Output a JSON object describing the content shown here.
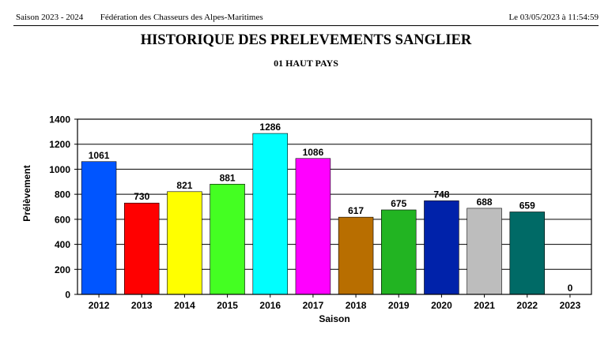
{
  "header": {
    "season": "Saison 2023 - 2024",
    "federation": "Fédération des Chasseurs des Alpes-Maritimes",
    "datetime": "Le  03/05/2023  à  11:54:59"
  },
  "chart_data": {
    "type": "bar",
    "title": "HISTORIQUE DES PRELEVEMENTS SANGLIER",
    "subtitle": "01 HAUT PAYS",
    "xlabel": "Saison",
    "ylabel": "Prélèvement",
    "ylim": [
      0,
      1400
    ],
    "yticks": [
      0,
      200,
      400,
      600,
      800,
      1000,
      1200,
      1400
    ],
    "grid": true,
    "legend": "none",
    "categories": [
      "2012",
      "2013",
      "2014",
      "2015",
      "2016",
      "2017",
      "2018",
      "2019",
      "2020",
      "2021",
      "2022",
      "2023"
    ],
    "values": [
      1061,
      730,
      821,
      881,
      1286,
      1086,
      617,
      675,
      748,
      688,
      659,
      0
    ],
    "colors": [
      "#0055ff",
      "#ff0000",
      "#ffff00",
      "#44ff22",
      "#00ffff",
      "#ff00ff",
      "#b86e00",
      "#22b422",
      "#0022aa",
      "#bdbdbd",
      "#006a66",
      "#000000"
    ]
  }
}
